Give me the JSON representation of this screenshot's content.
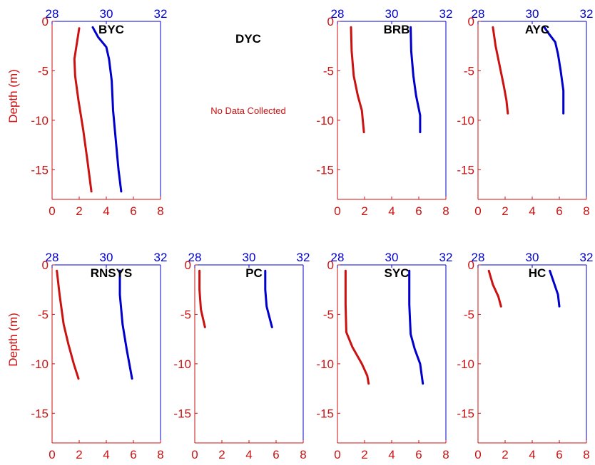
{
  "colors": {
    "temperature": "#0000cc",
    "salinity": "#cc1111"
  },
  "axes": {
    "ylabel": "Depth (m)",
    "temperature_ticks": [
      "28",
      "30",
      "32"
    ],
    "salinity_ticks": [
      "0",
      "2",
      "4",
      "6",
      "8"
    ],
    "depth_ticks": [
      "0",
      "-5",
      "-10",
      "-15"
    ]
  },
  "chart_data": [
    {
      "type": "line",
      "title": "BYC",
      "ylim": [
        -18,
        0
      ],
      "xlim_salinity": [
        0,
        8
      ],
      "xlim_temperature": [
        28,
        32
      ],
      "series": [
        {
          "axis": "salinity",
          "points": [
            [
              2.0,
              -0.7
            ],
            [
              1.85,
              -2
            ],
            [
              1.65,
              -3.8
            ],
            [
              1.7,
              -5.5
            ],
            [
              1.95,
              -8
            ],
            [
              2.3,
              -11
            ],
            [
              2.6,
              -14
            ],
            [
              2.9,
              -17.2
            ]
          ]
        },
        {
          "axis": "temperature",
          "points": [
            [
              29.5,
              -0.6
            ],
            [
              29.7,
              -1.6
            ],
            [
              30.0,
              -2.6
            ],
            [
              30.1,
              -3.8
            ],
            [
              30.2,
              -6
            ],
            [
              30.25,
              -9
            ],
            [
              30.35,
              -12
            ],
            [
              30.45,
              -15
            ],
            [
              30.55,
              -17.2
            ]
          ]
        }
      ]
    },
    {
      "type": "line",
      "title": "DYC",
      "note": "No Data Collected",
      "series": []
    },
    {
      "type": "line",
      "title": "BRB",
      "ylim": [
        -18,
        0
      ],
      "xlim_salinity": [
        0,
        8
      ],
      "xlim_temperature": [
        28,
        32
      ],
      "series": [
        {
          "axis": "salinity",
          "points": [
            [
              1.0,
              -0.6
            ],
            [
              1.05,
              -3
            ],
            [
              1.2,
              -5.5
            ],
            [
              1.5,
              -7.5
            ],
            [
              1.8,
              -9
            ],
            [
              1.95,
              -11.2
            ]
          ]
        },
        {
          "axis": "temperature",
          "points": [
            [
              30.7,
              -0.6
            ],
            [
              30.72,
              -3
            ],
            [
              30.8,
              -5.5
            ],
            [
              30.9,
              -7.5
            ],
            [
              31.05,
              -9.5
            ],
            [
              31.05,
              -11.2
            ]
          ]
        }
      ]
    },
    {
      "type": "line",
      "title": "AYC",
      "ylim": [
        -18,
        0
      ],
      "xlim_salinity": [
        0,
        8
      ],
      "xlim_temperature": [
        28,
        32
      ],
      "series": [
        {
          "axis": "salinity",
          "points": [
            [
              1.1,
              -0.6
            ],
            [
              1.3,
              -2.5
            ],
            [
              1.6,
              -4.5
            ],
            [
              1.9,
              -6.5
            ],
            [
              2.1,
              -8
            ],
            [
              2.2,
              -9.3
            ]
          ]
        },
        {
          "axis": "temperature",
          "points": [
            [
              30.45,
              -0.6
            ],
            [
              30.6,
              -1.2
            ],
            [
              30.85,
              -2.1
            ],
            [
              30.95,
              -3.3
            ],
            [
              31.05,
              -5
            ],
            [
              31.15,
              -7
            ],
            [
              31.15,
              -9.3
            ]
          ]
        }
      ]
    },
    {
      "type": "line",
      "title": "RNSYS",
      "ylim": [
        -18,
        0
      ],
      "xlim_salinity": [
        0,
        8
      ],
      "xlim_temperature": [
        28,
        32
      ],
      "series": [
        {
          "axis": "salinity",
          "points": [
            [
              0.35,
              -0.6
            ],
            [
              0.55,
              -3
            ],
            [
              0.85,
              -6
            ],
            [
              1.2,
              -8
            ],
            [
              1.6,
              -10
            ],
            [
              1.95,
              -11.5
            ]
          ]
        },
        {
          "axis": "temperature",
          "points": [
            [
              30.5,
              -0.6
            ],
            [
              30.5,
              -3
            ],
            [
              30.6,
              -6
            ],
            [
              30.75,
              -8.5
            ],
            [
              30.95,
              -11.5
            ]
          ]
        }
      ]
    },
    {
      "type": "line",
      "title": "PC",
      "ylim": [
        -18,
        0
      ],
      "xlim_salinity": [
        0,
        8
      ],
      "xlim_temperature": [
        28,
        32
      ],
      "series": [
        {
          "axis": "salinity",
          "points": [
            [
              0.35,
              -0.6
            ],
            [
              0.35,
              -2.5
            ],
            [
              0.45,
              -4.5
            ],
            [
              0.75,
              -6.3
            ]
          ]
        },
        {
          "axis": "temperature",
          "points": [
            [
              30.6,
              -0.6
            ],
            [
              30.6,
              -2.5
            ],
            [
              30.65,
              -4.2
            ],
            [
              30.85,
              -6.3
            ]
          ]
        }
      ]
    },
    {
      "type": "line",
      "title": "SYC",
      "ylim": [
        -18,
        0
      ],
      "xlim_salinity": [
        0,
        8
      ],
      "xlim_temperature": [
        28,
        32
      ],
      "series": [
        {
          "axis": "salinity",
          "points": [
            [
              0.6,
              -0.6
            ],
            [
              0.6,
              -4
            ],
            [
              0.65,
              -6.8
            ],
            [
              1.1,
              -8.3
            ],
            [
              1.8,
              -10
            ],
            [
              2.2,
              -11.2
            ],
            [
              2.3,
              -12
            ]
          ]
        },
        {
          "axis": "temperature",
          "points": [
            [
              30.65,
              -0.6
            ],
            [
              30.65,
              -4
            ],
            [
              30.7,
              -7
            ],
            [
              30.85,
              -8.5
            ],
            [
              31.05,
              -10
            ],
            [
              31.15,
              -12
            ]
          ]
        }
      ]
    },
    {
      "type": "line",
      "title": "HC",
      "ylim": [
        -18,
        0
      ],
      "xlim_salinity": [
        0,
        8
      ],
      "xlim_temperature": [
        28,
        32
      ],
      "series": [
        {
          "axis": "salinity",
          "points": [
            [
              0.8,
              -0.6
            ],
            [
              1.1,
              -2
            ],
            [
              1.5,
              -3.2
            ],
            [
              1.7,
              -4.2
            ]
          ]
        },
        {
          "axis": "temperature",
          "points": [
            [
              30.65,
              -0.6
            ],
            [
              30.8,
              -1.8
            ],
            [
              30.95,
              -3
            ],
            [
              31.0,
              -4.2
            ]
          ]
        }
      ]
    }
  ]
}
